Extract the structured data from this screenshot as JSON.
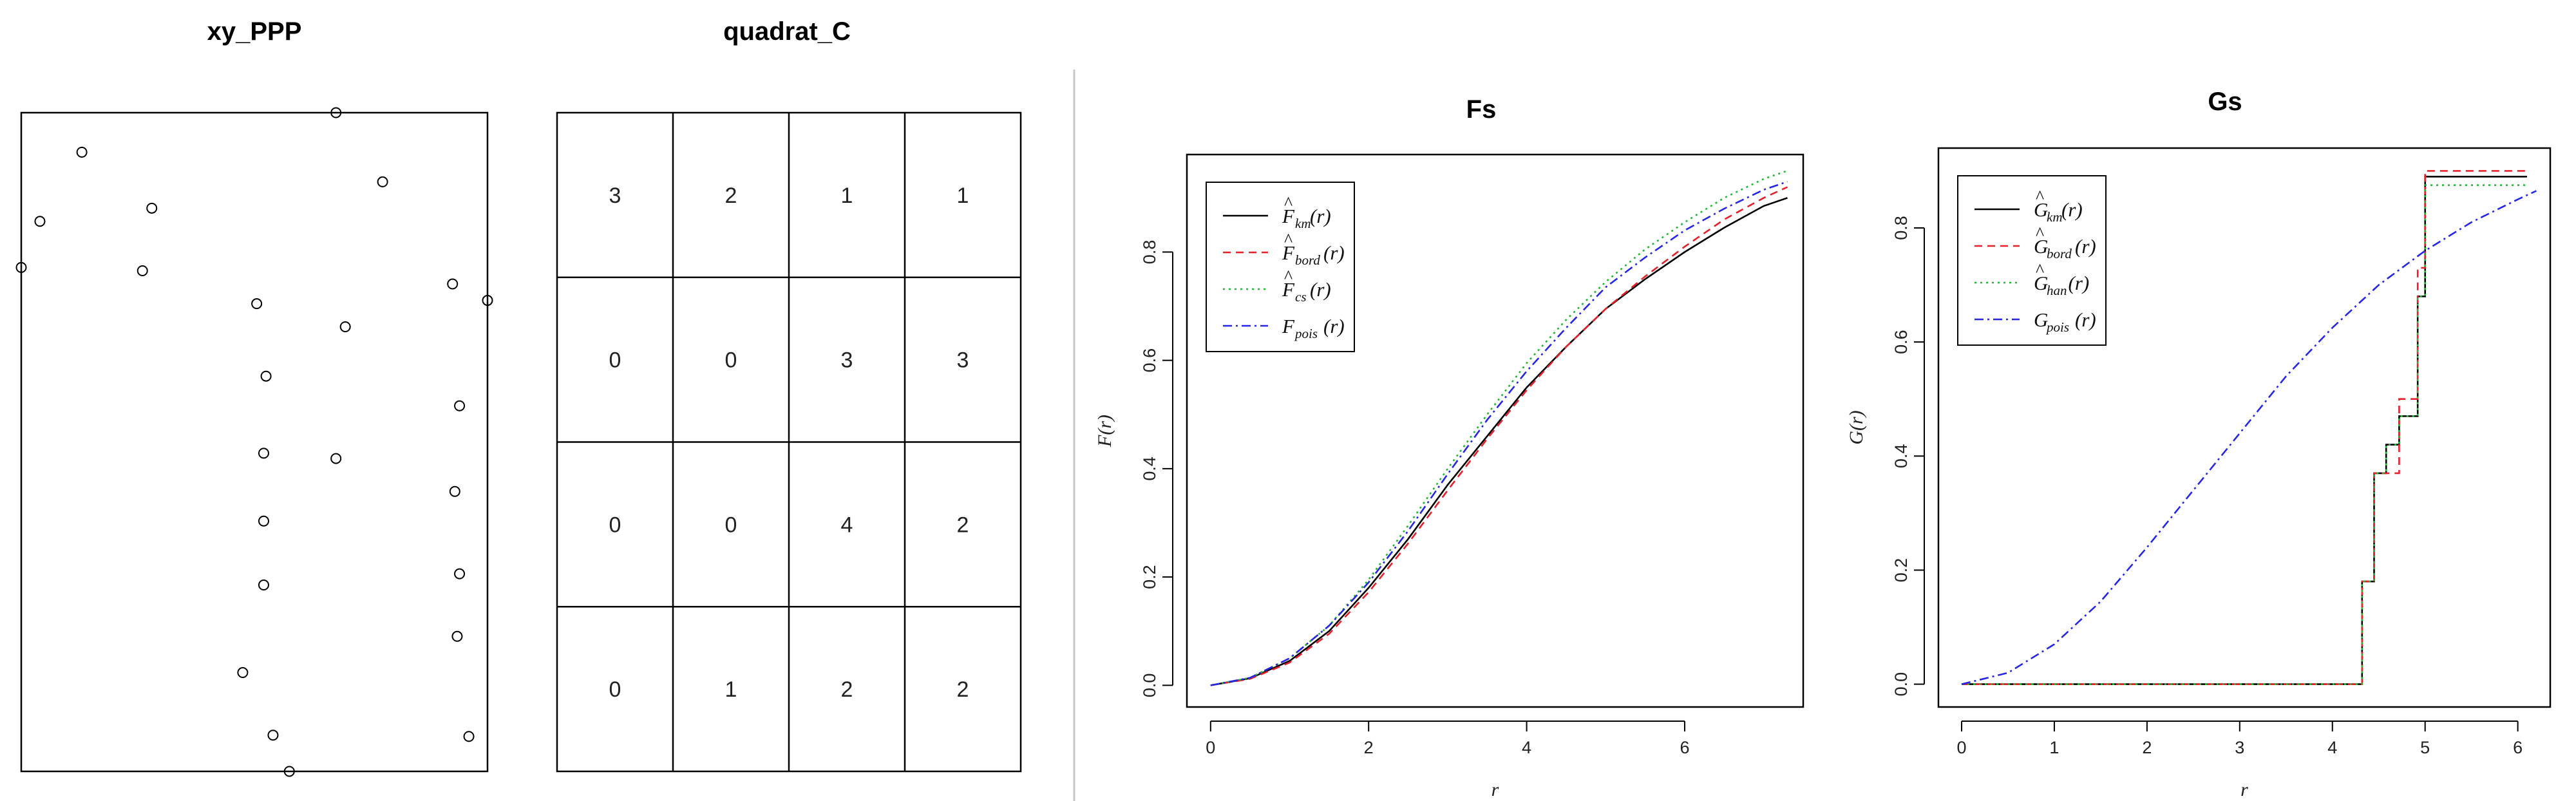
{
  "colors": {
    "black": "#000000",
    "red": "#e8202a",
    "green": "#1fb832",
    "blue": "#2626e6"
  },
  "panels": {
    "xy": {
      "title": "xy_PPP"
    },
    "quadrat": {
      "title": "quadrat_C"
    },
    "fs": {
      "title": "Fs"
    },
    "gs": {
      "title": "Gs"
    }
  },
  "chart_data": [
    {
      "id": "xy",
      "type": "scatter",
      "title": "xy_PPP",
      "xlim": [
        0,
        1
      ],
      "ylim": [
        0,
        1
      ],
      "marker": "open-circle",
      "points": [
        [
          0.0,
          0.765
        ],
        [
          0.04,
          0.835
        ],
        [
          0.13,
          0.94
        ],
        [
          0.26,
          0.76
        ],
        [
          0.28,
          0.855
        ],
        [
          0.675,
          1.0
        ],
        [
          0.775,
          0.895
        ],
        [
          0.505,
          0.71
        ],
        [
          0.695,
          0.675
        ],
        [
          0.525,
          0.6
        ],
        [
          0.925,
          0.74
        ],
        [
          1.0,
          0.715
        ],
        [
          0.94,
          0.555
        ],
        [
          0.52,
          0.483
        ],
        [
          0.675,
          0.475
        ],
        [
          0.93,
          0.425
        ],
        [
          0.52,
          0.38
        ],
        [
          0.94,
          0.3
        ],
        [
          0.52,
          0.283
        ],
        [
          0.935,
          0.205
        ],
        [
          0.475,
          0.15
        ],
        [
          0.54,
          0.055
        ],
        [
          0.96,
          0.053
        ],
        [
          0.575,
          0.0
        ]
      ]
    },
    {
      "id": "quadrat",
      "type": "table",
      "title": "quadrat_C",
      "rows": [
        [
          "3",
          "2",
          "1",
          "1"
        ],
        [
          "0",
          "0",
          "3",
          "3"
        ],
        [
          "0",
          "0",
          "4",
          "2"
        ],
        [
          "0",
          "1",
          "2",
          "2"
        ]
      ]
    },
    {
      "id": "fs",
      "type": "line",
      "title": "Fs",
      "xlabel": "r",
      "ylabel": "F(r)",
      "xlim": [
        -0.3,
        7.5
      ],
      "ylim": [
        -0.04,
        0.98
      ],
      "xticks": [
        "0",
        "2",
        "4",
        "6"
      ],
      "yticks": [
        "0.0",
        "0.2",
        "0.4",
        "0.6",
        "0.8"
      ],
      "legend_position": "top-left",
      "series": [
        {
          "color": "black",
          "dash": "",
          "label": {
            "hat": "^",
            "main": "F",
            "sub": "km",
            "arg": "(r)"
          },
          "x": [
            0,
            0.5,
            1,
            1.5,
            2,
            2.5,
            3,
            3.5,
            4,
            4.5,
            5,
            5.5,
            6,
            6.5,
            7,
            7.3
          ],
          "y": [
            0,
            0.013,
            0.045,
            0.1,
            0.18,
            0.27,
            0.37,
            0.46,
            0.55,
            0.625,
            0.695,
            0.75,
            0.8,
            0.845,
            0.885,
            0.9
          ]
        },
        {
          "color": "red",
          "dash": "12 8",
          "label": {
            "hat": "^",
            "main": "F",
            "sub": "bord",
            "arg": "(r)"
          },
          "x": [
            0,
            0.5,
            1,
            1.5,
            2,
            2.5,
            3,
            3.5,
            4,
            4.5,
            5,
            5.5,
            6,
            6.5,
            7,
            7.3
          ],
          "y": [
            0,
            0.012,
            0.042,
            0.095,
            0.172,
            0.262,
            0.36,
            0.455,
            0.545,
            0.625,
            0.695,
            0.755,
            0.81,
            0.86,
            0.9,
            0.92
          ]
        },
        {
          "color": "green",
          "dash": "3 6",
          "label": {
            "hat": "^",
            "main": "F",
            "sub": "cs",
            "arg": "(r)"
          },
          "x": [
            0,
            0.5,
            1,
            1.5,
            2,
            2.5,
            3,
            3.5,
            4,
            4.5,
            5,
            5.5,
            6,
            6.5,
            7,
            7.3
          ],
          "y": [
            0,
            0.014,
            0.05,
            0.11,
            0.195,
            0.295,
            0.4,
            0.5,
            0.595,
            0.675,
            0.745,
            0.805,
            0.855,
            0.9,
            0.935,
            0.95
          ]
        },
        {
          "color": "blue",
          "dash": "14 6 3 6",
          "label": {
            "hat": "",
            "main": "F",
            "sub": "pois",
            "arg": "(r)"
          },
          "x": [
            0,
            0.5,
            1,
            1.5,
            2,
            2.5,
            3,
            3.5,
            4,
            4.5,
            5,
            5.5,
            6,
            6.5,
            7,
            7.3
          ],
          "y": [
            0,
            0.014,
            0.05,
            0.11,
            0.19,
            0.285,
            0.39,
            0.49,
            0.58,
            0.66,
            0.735,
            0.79,
            0.84,
            0.88,
            0.915,
            0.93
          ]
        }
      ]
    },
    {
      "id": "gs",
      "type": "line",
      "title": "Gs",
      "xlabel": "r",
      "ylabel": "G(r)",
      "xlim": [
        -0.25,
        6.35
      ],
      "ylim": [
        -0.04,
        0.94
      ],
      "xticks": [
        "0",
        "1",
        "2",
        "3",
        "4",
        "5",
        "6"
      ],
      "yticks": [
        "0.0",
        "0.2",
        "0.4",
        "0.6",
        "0.8"
      ],
      "legend_position": "top-left",
      "series": [
        {
          "color": "black",
          "dash": "",
          "step": true,
          "label": {
            "hat": "^",
            "main": "G",
            "sub": "km",
            "arg": "(r)"
          },
          "x": [
            0,
            4.32,
            4.45,
            4.58,
            4.72,
            4.92,
            5.0,
            6.1
          ],
          "y": [
            0,
            0.18,
            0.37,
            0.42,
            0.47,
            0.68,
            0.89,
            0.89
          ]
        },
        {
          "color": "red",
          "dash": "12 8",
          "step": true,
          "label": {
            "hat": "^",
            "main": "G",
            "sub": "bord",
            "arg": "(r)"
          },
          "x": [
            0,
            4.32,
            4.45,
            4.58,
            4.72,
            4.92,
            5.0,
            6.1
          ],
          "y": [
            0,
            0.18,
            0.37,
            0.37,
            0.5,
            0.73,
            0.9,
            0.9
          ]
        },
        {
          "color": "green",
          "dash": "3 6",
          "step": true,
          "label": {
            "hat": "^",
            "main": "G",
            "sub": "han",
            "arg": "(r)"
          },
          "x": [
            0,
            4.32,
            4.45,
            4.58,
            4.72,
            4.92,
            5.0,
            6.1
          ],
          "y": [
            0,
            0.18,
            0.37,
            0.42,
            0.47,
            0.68,
            0.875,
            0.875
          ]
        },
        {
          "color": "blue",
          "dash": "14 6 3 6",
          "step": false,
          "label": {
            "hat": "",
            "main": "G",
            "sub": "pois",
            "arg": "(r)"
          },
          "x": [
            0,
            0.5,
            1,
            1.5,
            2,
            2.5,
            3,
            3.5,
            4,
            4.5,
            5,
            5.5,
            6,
            6.2
          ],
          "y": [
            0,
            0.02,
            0.07,
            0.145,
            0.24,
            0.34,
            0.44,
            0.54,
            0.625,
            0.7,
            0.76,
            0.81,
            0.85,
            0.865
          ]
        }
      ]
    }
  ]
}
